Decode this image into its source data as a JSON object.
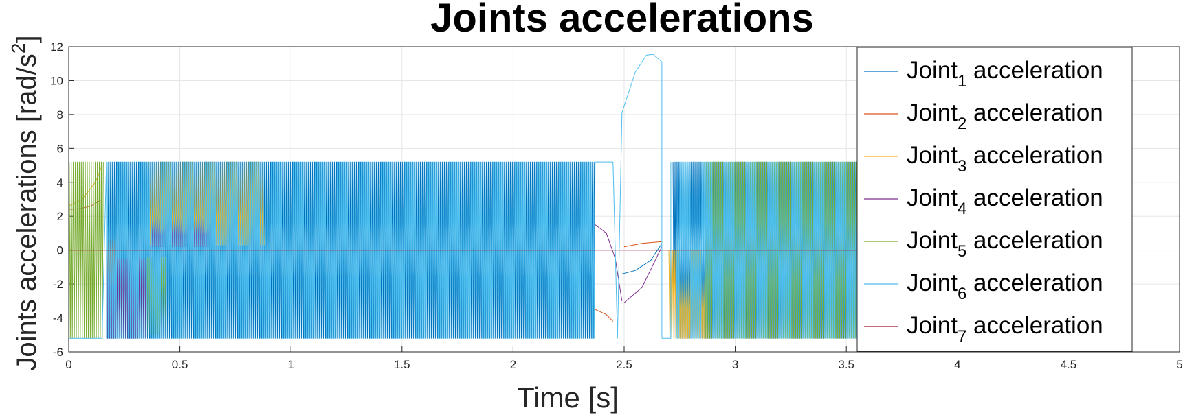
{
  "chart_data": {
    "type": "line",
    "title": "Joints accelerations",
    "xlabel": "Time [s]",
    "ylabel_main": "Joints accelerations [rad/s",
    "ylabel_sup": "2",
    "ylabel_end": "]",
    "xlim": [
      0,
      5
    ],
    "ylim": [
      -6,
      12
    ],
    "xticks": [
      0,
      0.5,
      1,
      1.5,
      2,
      2.5,
      3,
      3.5,
      4,
      4.5,
      5
    ],
    "xtick_labels": [
      "0",
      "0.5",
      "1",
      "1.5",
      "2",
      "2.5",
      "3",
      "3.5",
      "4",
      "4.5",
      "5"
    ],
    "yticks": [
      -6,
      -4,
      -2,
      0,
      2,
      4,
      6,
      8,
      10,
      12
    ],
    "ytick_labels": [
      "-6",
      "-4",
      "-2",
      "0",
      "2",
      "4",
      "6",
      "8",
      "10",
      "12"
    ],
    "grid": true,
    "legend_position": "top-right",
    "acc_limit": 5.236,
    "series": [
      {
        "name_prefix": "Joint",
        "name_sub": "1",
        "name_suffix": " acceleration",
        "color": "#0072BD",
        "segments": [
          {
            "t0": 0.17,
            "t1": 2.37,
            "shape": "oscillating",
            "low": -5.2,
            "high": 5.2
          },
          {
            "t0": 2.49,
            "t1": 2.67,
            "shape": "path",
            "points": [
              [
                2.49,
                -1.4
              ],
              [
                2.55,
                -1.2
              ],
              [
                2.62,
                -0.6
              ],
              [
                2.67,
                0.4
              ]
            ]
          },
          {
            "t0": 2.72,
            "t1": 3.58,
            "shape": "oscillating",
            "low": -5.2,
            "high": 5.2
          }
        ]
      },
      {
        "name_prefix": "Joint",
        "name_sub": "2",
        "name_suffix": " acceleration",
        "color": "#D95319",
        "segments": [
          {
            "t0": 0.0,
            "t1": 0.15,
            "shape": "path",
            "points": [
              [
                0,
                2.4
              ],
              [
                0.05,
                2.45
              ],
              [
                0.1,
                2.6
              ],
              [
                0.15,
                3.0
              ]
            ]
          },
          {
            "t0": 0.17,
            "t1": 0.21,
            "shape": "oscillating",
            "low": -2.0,
            "high": 0.6
          },
          {
            "t0": 2.37,
            "t1": 2.45,
            "shape": "path",
            "points": [
              [
                2.37,
                -3.5
              ],
              [
                2.42,
                -3.8
              ],
              [
                2.45,
                -4.2
              ]
            ]
          },
          {
            "t0": 2.5,
            "t1": 2.67,
            "shape": "path",
            "points": [
              [
                2.5,
                0.2
              ],
              [
                2.58,
                0.4
              ],
              [
                2.67,
                0.5
              ]
            ]
          }
        ]
      },
      {
        "name_prefix": "Joint",
        "name_sub": "3",
        "name_suffix": " acceleration",
        "color": "#EDB120",
        "segments": [
          {
            "t0": 0.0,
            "t1": 0.15,
            "shape": "path",
            "points": [
              [
                0,
                2.6
              ],
              [
                0.06,
                3.0
              ],
              [
                0.12,
                4.0
              ],
              [
                0.15,
                5.0
              ]
            ]
          },
          {
            "t0": 0.36,
            "t1": 0.88,
            "shape": "oscillating",
            "low": 0.3,
            "high": 5.2
          },
          {
            "t0": 2.7,
            "t1": 2.88,
            "shape": "oscillating",
            "low": -5.2,
            "high": 0.0
          }
        ]
      },
      {
        "name_prefix": "Joint",
        "name_sub": "4",
        "name_suffix": " acceleration",
        "color": "#7E2F8E",
        "segments": [
          {
            "t0": 0.17,
            "t1": 0.35,
            "shape": "oscillating",
            "low": -5.2,
            "high": -0.5
          },
          {
            "t0": 0.37,
            "t1": 0.65,
            "shape": "oscillating",
            "low": 0.2,
            "high": 2.2
          },
          {
            "t0": 2.37,
            "t1": 2.49,
            "shape": "path",
            "points": [
              [
                2.37,
                1.5
              ],
              [
                2.42,
                1.0
              ],
              [
                2.46,
                -0.5
              ],
              [
                2.49,
                -3.0
              ]
            ]
          },
          {
            "t0": 2.5,
            "t1": 2.67,
            "shape": "path",
            "points": [
              [
                2.5,
                -3.1
              ],
              [
                2.58,
                -2.2
              ],
              [
                2.67,
                0.2
              ]
            ]
          }
        ]
      },
      {
        "name_prefix": "Joint",
        "name_sub": "5",
        "name_suffix": " acceleration",
        "color": "#77AC30",
        "segments": [
          {
            "t0": 0.0,
            "t1": 0.16,
            "shape": "oscillating",
            "low": -5.2,
            "high": 5.2
          },
          {
            "t0": 0.35,
            "t1": 0.44,
            "shape": "oscillating",
            "low": -5.0,
            "high": -0.4
          },
          {
            "t0": 2.86,
            "t1": 3.58,
            "shape": "oscillating",
            "low": -5.2,
            "high": 5.2
          }
        ]
      },
      {
        "name_prefix": "Joint",
        "name_sub": "6",
        "name_suffix": " acceleration",
        "color": "#4DBEEE",
        "segments": [
          {
            "t0": 0.0,
            "t1": 0.17,
            "shape": "path",
            "points": [
              [
                0,
                -5.2
              ],
              [
                0.15,
                -5.2
              ],
              [
                0.17,
                5.2
              ],
              [
                0.17,
                -5.2
              ]
            ]
          },
          {
            "t0": 0.17,
            "t1": 2.37,
            "shape": "oscillating",
            "low": -5.2,
            "high": 5.2
          },
          {
            "t0": 2.37,
            "t1": 2.73,
            "shape": "path",
            "points": [
              [
                2.37,
                5.2
              ],
              [
                2.45,
                5.2
              ],
              [
                2.47,
                -5.2
              ],
              [
                2.49,
                8.1
              ],
              [
                2.55,
                10.5
              ],
              [
                2.6,
                11.5
              ],
              [
                2.63,
                11.55
              ],
              [
                2.67,
                11.1
              ],
              [
                2.67,
                -5.2
              ],
              [
                2.71,
                -5.2
              ],
              [
                2.71,
                5.2
              ]
            ]
          },
          {
            "t0": 2.73,
            "t1": 3.58,
            "shape": "oscillating",
            "low": -5.2,
            "high": 5.2
          }
        ]
      },
      {
        "name_prefix": "Joint",
        "name_sub": "7",
        "name_suffix": " acceleration",
        "color": "#A2142F",
        "segments": [
          {
            "t0": 0.0,
            "t1": 3.58,
            "shape": "path",
            "points": [
              [
                0,
                0
              ],
              [
                3.58,
                0
              ]
            ]
          }
        ]
      }
    ]
  }
}
